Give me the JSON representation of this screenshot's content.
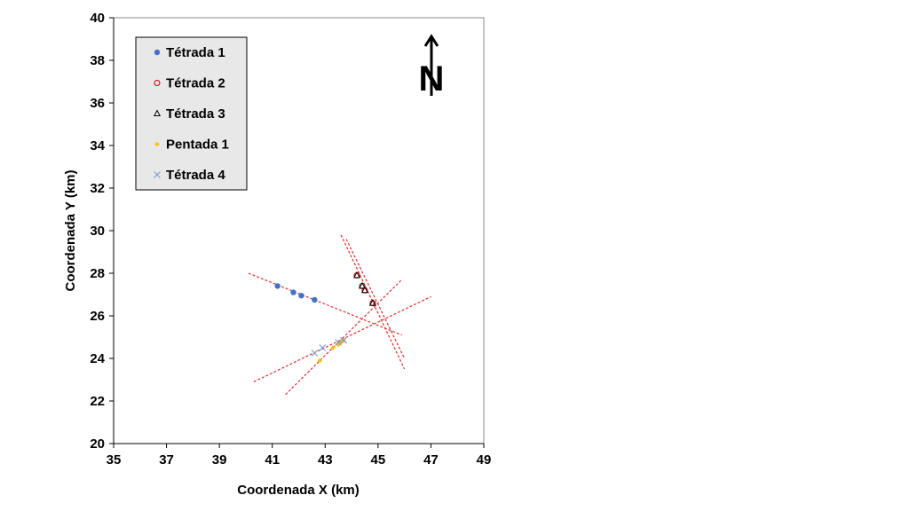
{
  "chart_data": {
    "type": "scatter",
    "title": "",
    "xlabel": "Coordenada X (km)",
    "ylabel": "Coordenada Y (km)",
    "xlim": [
      35,
      49
    ],
    "ylim": [
      20,
      40
    ],
    "xticks": [
      35,
      37,
      39,
      41,
      43,
      45,
      47,
      49
    ],
    "yticks": [
      20,
      22,
      24,
      26,
      28,
      30,
      32,
      34,
      36,
      38,
      40
    ],
    "grid": false,
    "legend_position": "top-left",
    "north_label": "N",
    "series": [
      {
        "name": "Tétrada 1",
        "marker": "filled-circle",
        "color": "#4472C4",
        "x": [
          41.2,
          41.8,
          42.1,
          42.6
        ],
        "y": [
          27.4,
          27.1,
          26.95,
          26.75
        ]
      },
      {
        "name": "Tétrada 2",
        "marker": "open-circle",
        "color": "#C00000",
        "x": [
          44.2,
          44.4,
          44.5,
          44.8
        ],
        "y": [
          27.9,
          27.4,
          27.2,
          26.6
        ]
      },
      {
        "name": "Tétrada 3",
        "marker": "open-triangle",
        "color": "#000000",
        "x": [
          44.2,
          44.4,
          44.5,
          44.8
        ],
        "y": [
          27.9,
          27.4,
          27.2,
          26.6
        ]
      },
      {
        "name": "Pentada 1",
        "marker": "filled-diamond",
        "color": "#FFC000",
        "x": [
          42.8,
          43.3,
          43.5,
          43.6,
          43.7
        ],
        "y": [
          23.9,
          24.5,
          24.65,
          24.75,
          24.85
        ]
      },
      {
        "name": "Tétrada 4",
        "marker": "x",
        "color": "#7F9FCF",
        "x": [
          42.6,
          42.9,
          43.5,
          43.7
        ],
        "y": [
          24.25,
          24.5,
          24.75,
          24.85
        ]
      }
    ],
    "fit_lines": [
      {
        "color": "#E03030",
        "x": [
          40.1,
          45.9
        ],
        "y": [
          28.0,
          25.1
        ]
      },
      {
        "color": "#E03030",
        "x": [
          43.6,
          46.0
        ],
        "y": [
          29.8,
          23.5
        ]
      },
      {
        "color": "#E03030",
        "x": [
          43.8,
          46.0
        ],
        "y": [
          29.6,
          24.0
        ]
      },
      {
        "color": "#E03030",
        "x": [
          40.3,
          47.0
        ],
        "y": [
          22.9,
          26.9
        ]
      },
      {
        "color": "#E03030",
        "x": [
          41.5,
          45.9
        ],
        "y": [
          22.3,
          27.7
        ]
      }
    ]
  }
}
